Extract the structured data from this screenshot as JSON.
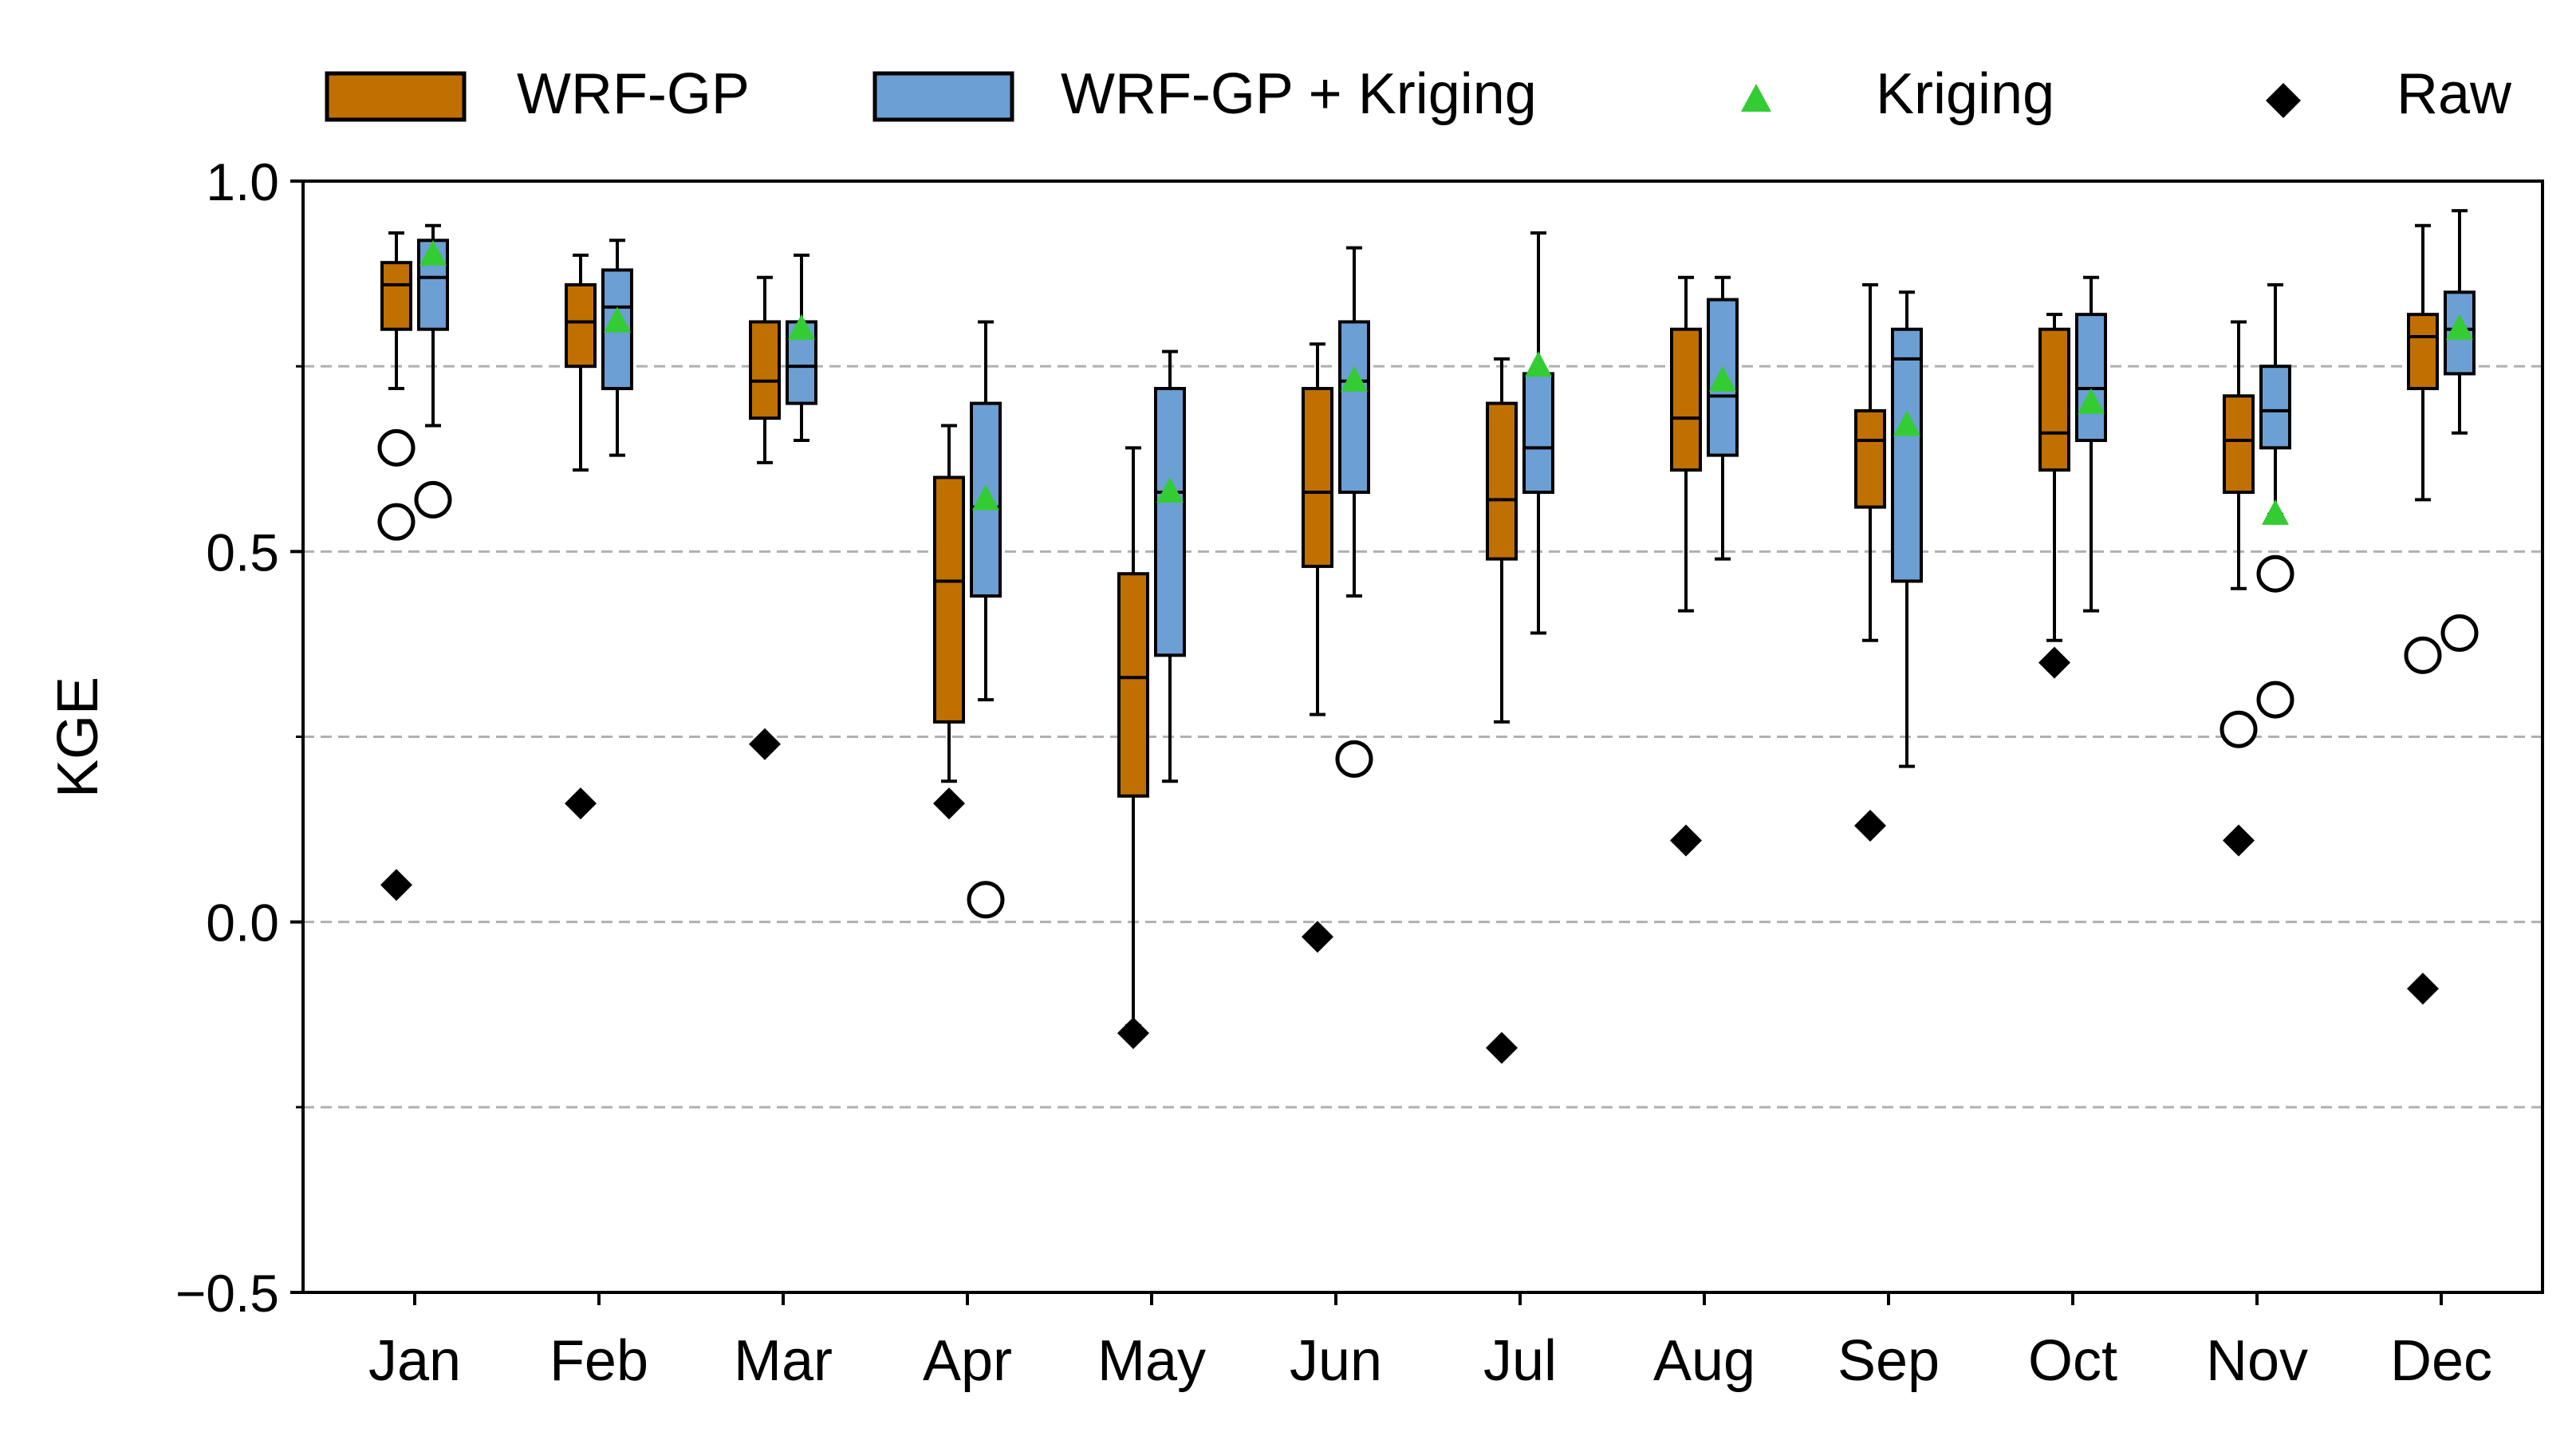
{
  "chart_data": {
    "type": "box",
    "xlabel": "",
    "ylabel": "KGE",
    "ylim": [
      -0.5,
      1.0
    ],
    "yticks": [
      -0.5,
      0.0,
      0.5,
      1.0
    ],
    "ytick_labels": [
      "−0.5",
      "0.0",
      "0.5",
      "1.0"
    ],
    "gridlines_y": [
      -0.25,
      0.0,
      0.25,
      0.5,
      0.75
    ],
    "grid": "dashed horizontal",
    "legend_position": "top",
    "categories": [
      "Jan",
      "Feb",
      "Mar",
      "Apr",
      "May",
      "Jun",
      "Jul",
      "Aug",
      "Sep",
      "Oct",
      "Nov",
      "Dec"
    ],
    "series": [
      {
        "name": "WRF-GP",
        "kind": "box",
        "color": "#c07000",
        "boxes": [
          {
            "whislo": 0.72,
            "q1": 0.8,
            "med": 0.86,
            "q3": 0.89,
            "whishi": 0.93,
            "fliers": [
              0.64,
              0.54
            ]
          },
          {
            "whislo": 0.61,
            "q1": 0.75,
            "med": 0.81,
            "q3": 0.86,
            "whishi": 0.9,
            "fliers": []
          },
          {
            "whislo": 0.62,
            "q1": 0.68,
            "med": 0.73,
            "q3": 0.81,
            "whishi": 0.87,
            "fliers": []
          },
          {
            "whislo": 0.19,
            "q1": 0.27,
            "med": 0.46,
            "q3": 0.6,
            "whishi": 0.67,
            "fliers": []
          },
          {
            "whislo": -0.14,
            "q1": 0.17,
            "med": 0.33,
            "q3": 0.47,
            "whishi": 0.64,
            "fliers": []
          },
          {
            "whislo": 0.28,
            "q1": 0.48,
            "med": 0.58,
            "q3": 0.72,
            "whishi": 0.78,
            "fliers": []
          },
          {
            "whislo": 0.27,
            "q1": 0.49,
            "med": 0.57,
            "q3": 0.7,
            "whishi": 0.76,
            "fliers": []
          },
          {
            "whislo": 0.42,
            "q1": 0.61,
            "med": 0.68,
            "q3": 0.8,
            "whishi": 0.87,
            "fliers": []
          },
          {
            "whislo": 0.38,
            "q1": 0.56,
            "med": 0.65,
            "q3": 0.69,
            "whishi": 0.86,
            "fliers": []
          },
          {
            "whislo": 0.38,
            "q1": 0.61,
            "med": 0.66,
            "q3": 0.8,
            "whishi": 0.82,
            "fliers": []
          },
          {
            "whislo": 0.45,
            "q1": 0.58,
            "med": 0.65,
            "q3": 0.71,
            "whishi": 0.81,
            "fliers": [
              0.26
            ]
          },
          {
            "whislo": 0.57,
            "q1": 0.72,
            "med": 0.79,
            "q3": 0.82,
            "whishi": 0.94,
            "fliers": [
              0.36
            ]
          }
        ]
      },
      {
        "name": "WRF-GP + Kriging",
        "kind": "box",
        "color": "#6c9fd3",
        "boxes": [
          {
            "whislo": 0.67,
            "q1": 0.8,
            "med": 0.87,
            "q3": 0.92,
            "whishi": 0.94,
            "fliers": [
              0.57
            ]
          },
          {
            "whislo": 0.63,
            "q1": 0.72,
            "med": 0.83,
            "q3": 0.88,
            "whishi": 0.92,
            "fliers": []
          },
          {
            "whislo": 0.65,
            "q1": 0.7,
            "med": 0.75,
            "q3": 0.81,
            "whishi": 0.9,
            "fliers": []
          },
          {
            "whislo": 0.3,
            "q1": 0.44,
            "med": 0.56,
            "q3": 0.7,
            "whishi": 0.81,
            "fliers": [
              0.03
            ]
          },
          {
            "whislo": 0.19,
            "q1": 0.36,
            "med": 0.58,
            "q3": 0.72,
            "whishi": 0.77,
            "fliers": []
          },
          {
            "whislo": 0.44,
            "q1": 0.58,
            "med": 0.73,
            "q3": 0.81,
            "whishi": 0.91,
            "fliers": [
              0.22
            ]
          },
          {
            "whislo": 0.39,
            "q1": 0.58,
            "med": 0.64,
            "q3": 0.74,
            "whishi": 0.93,
            "fliers": []
          },
          {
            "whislo": 0.49,
            "q1": 0.63,
            "med": 0.71,
            "q3": 0.84,
            "whishi": 0.87,
            "fliers": []
          },
          {
            "whislo": 0.21,
            "q1": 0.46,
            "med": 0.76,
            "q3": 0.8,
            "whishi": 0.85,
            "fliers": []
          },
          {
            "whislo": 0.42,
            "q1": 0.65,
            "med": 0.72,
            "q3": 0.82,
            "whishi": 0.87,
            "fliers": []
          },
          {
            "whislo": 0.55,
            "q1": 0.64,
            "med": 0.69,
            "q3": 0.75,
            "whishi": 0.86,
            "fliers": [
              0.47,
              0.3
            ]
          },
          {
            "whislo": 0.66,
            "q1": 0.74,
            "med": 0.8,
            "q3": 0.85,
            "whishi": 0.96,
            "fliers": [
              0.39
            ]
          }
        ]
      },
      {
        "name": "Kriging",
        "kind": "marker",
        "marker": "triangle",
        "color": "#33cc33",
        "values": [
          0.9,
          0.81,
          0.8,
          0.57,
          0.58,
          0.73,
          0.75,
          0.73,
          0.67,
          0.7,
          0.55,
          0.8
        ]
      },
      {
        "name": "Raw",
        "kind": "marker",
        "marker": "diamond",
        "color": "#000000",
        "values": [
          0.05,
          0.16,
          0.24,
          0.16,
          -0.15,
          -0.02,
          -0.17,
          0.11,
          0.13,
          0.35,
          0.11,
          -0.09
        ]
      }
    ]
  }
}
